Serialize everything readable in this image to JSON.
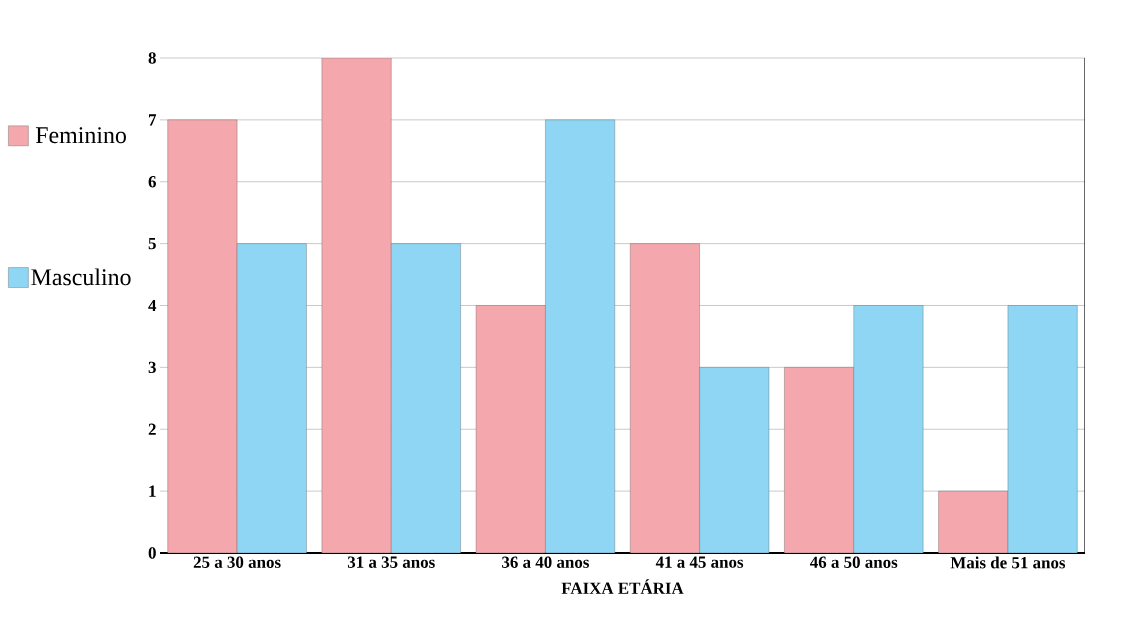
{
  "chart_data": {
    "type": "bar",
    "xlabel": "FAIXA ETÁRIA",
    "categories": [
      "25 a 30 anos",
      "31 a 35 anos",
      "36 a 40 anos",
      "41 a 45 anos",
      "46 a 50 anos",
      "Mais de 51 anos"
    ],
    "series": [
      {
        "name": "Feminino",
        "color": "#f4a8ad",
        "values": [
          7,
          8,
          4,
          5,
          3,
          1
        ]
      },
      {
        "name": "Masculino",
        "color": "#8ed6f4",
        "values": [
          5,
          5,
          7,
          3,
          4,
          4
        ]
      }
    ],
    "ylim": [
      0,
      8
    ],
    "yticks": [
      0,
      1,
      2,
      3,
      4,
      5,
      6,
      7,
      8
    ],
    "grid": "y",
    "legend": "left"
  }
}
